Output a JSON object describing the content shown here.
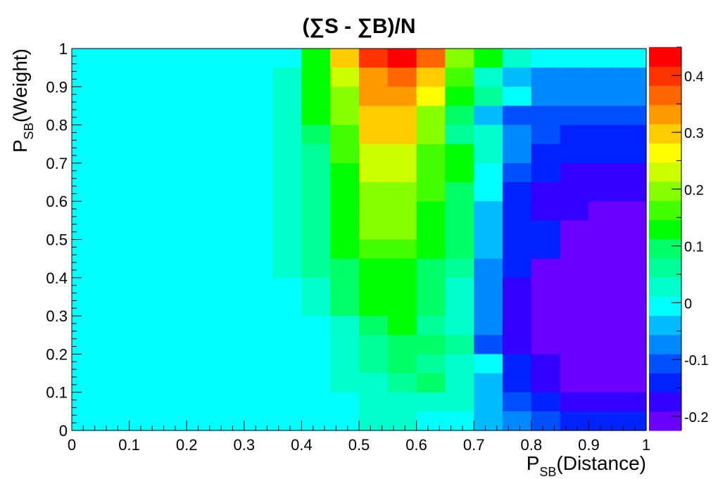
{
  "chart_data": {
    "type": "heatmap",
    "title": "(∑S - ∑B)/N",
    "xlabel": {
      "main": "P",
      "sub": "SB",
      "rest": "(Distance)"
    },
    "ylabel": {
      "main": "P",
      "sub": "SB",
      "rest": "(Weight)"
    },
    "xlim": [
      0,
      1
    ],
    "ylim": [
      0,
      1
    ],
    "x_ticks": [
      "0",
      "0.1",
      "0.2",
      "0.3",
      "0.4",
      "0.5",
      "0.6",
      "0.7",
      "0.8",
      "0.9",
      "1"
    ],
    "y_ticks": [
      "0",
      "0.1",
      "0.2",
      "0.3",
      "0.4",
      "0.5",
      "0.6",
      "0.7",
      "0.8",
      "0.9",
      "1"
    ],
    "x_bin_edges": [
      0,
      0.05,
      0.1,
      0.15,
      0.2,
      0.25,
      0.3,
      0.35,
      0.4,
      0.45,
      0.5,
      0.55,
      0.6,
      0.65,
      0.7,
      0.75,
      0.8,
      0.85,
      0.9,
      0.95,
      1.0
    ],
    "y_bin_edges": [
      0,
      0.05,
      0.1,
      0.15,
      0.2,
      0.25,
      0.3,
      0.35,
      0.4,
      0.45,
      0.5,
      0.55,
      0.6,
      0.65,
      0.7,
      0.75,
      0.8,
      0.85,
      0.9,
      0.95,
      1.0
    ],
    "z_values_rows_from_y1_to_y0": [
      [
        -0.01,
        -0.01,
        -0.01,
        -0.01,
        -0.01,
        -0.01,
        0.01,
        0.01,
        0.14,
        0.29,
        0.41,
        0.44,
        0.37,
        0.19,
        0.12,
        0.03,
        -0.01,
        -0.01,
        -0.01,
        -0.01
      ],
      [
        -0.01,
        -0.01,
        -0.01,
        -0.01,
        -0.01,
        -0.01,
        -0.01,
        0.04,
        0.12,
        0.24,
        0.34,
        0.37,
        0.29,
        0.15,
        0.03,
        -0.03,
        -0.07,
        -0.07,
        -0.07,
        -0.07
      ],
      [
        -0.01,
        -0.01,
        -0.01,
        -0.01,
        -0.01,
        -0.01,
        -0.01,
        0.04,
        0.12,
        0.21,
        0.33,
        0.33,
        0.27,
        0.14,
        0.07,
        -0.01,
        -0.07,
        -0.07,
        -0.07,
        -0.07
      ],
      [
        -0.01,
        -0.01,
        -0.01,
        -0.01,
        -0.01,
        -0.01,
        -0.01,
        0.04,
        0.12,
        0.21,
        0.31,
        0.31,
        0.19,
        0.09,
        -0.03,
        -0.11,
        -0.11,
        -0.11,
        -0.11,
        -0.11
      ],
      [
        -0.01,
        -0.01,
        -0.01,
        -0.01,
        -0.01,
        -0.01,
        -0.01,
        0.04,
        0.09,
        0.16,
        0.29,
        0.29,
        0.21,
        0.06,
        0.03,
        -0.07,
        -0.11,
        -0.15,
        -0.15,
        -0.15
      ],
      [
        -0.01,
        -0.01,
        -0.01,
        -0.01,
        -0.01,
        -0.01,
        -0.01,
        0.04,
        0.06,
        0.16,
        0.24,
        0.24,
        0.16,
        0.12,
        0.03,
        -0.07,
        -0.15,
        -0.15,
        -0.15,
        -0.15
      ],
      [
        -0.01,
        -0.01,
        -0.01,
        -0.01,
        -0.01,
        -0.01,
        -0.01,
        0.04,
        0.06,
        0.13,
        0.24,
        0.24,
        0.16,
        0.13,
        -0.01,
        -0.11,
        -0.15,
        -0.19,
        -0.19,
        -0.19
      ],
      [
        -0.01,
        -0.01,
        -0.01,
        -0.01,
        -0.01,
        -0.01,
        -0.01,
        0.04,
        0.06,
        0.13,
        0.21,
        0.21,
        0.16,
        0.09,
        -0.01,
        -0.15,
        -0.19,
        -0.19,
        -0.19,
        -0.19
      ],
      [
        -0.01,
        -0.01,
        -0.01,
        -0.01,
        -0.01,
        -0.01,
        -0.01,
        0.04,
        0.06,
        0.12,
        0.21,
        0.21,
        0.13,
        0.09,
        -0.03,
        -0.15,
        -0.19,
        -0.19,
        -0.21,
        -0.21
      ],
      [
        -0.01,
        -0.01,
        -0.01,
        -0.01,
        -0.01,
        -0.01,
        -0.01,
        0.04,
        0.06,
        0.12,
        0.21,
        0.21,
        0.13,
        0.09,
        -0.03,
        -0.15,
        -0.15,
        -0.21,
        -0.21,
        -0.21
      ],
      [
        -0.01,
        -0.01,
        -0.01,
        -0.01,
        -0.01,
        -0.01,
        -0.01,
        0.04,
        0.06,
        0.12,
        0.16,
        0.16,
        0.12,
        0.09,
        -0.03,
        -0.15,
        -0.15,
        -0.21,
        -0.21,
        -0.21
      ],
      [
        -0.01,
        -0.01,
        -0.01,
        -0.01,
        -0.01,
        -0.01,
        -0.01,
        0.04,
        0.06,
        0.09,
        0.13,
        0.13,
        0.09,
        0.06,
        -0.07,
        -0.15,
        -0.21,
        -0.21,
        -0.21,
        -0.21
      ],
      [
        -0.01,
        -0.01,
        -0.01,
        -0.01,
        -0.01,
        -0.01,
        -0.01,
        0.01,
        0.03,
        0.09,
        0.12,
        0.12,
        0.09,
        0.03,
        -0.07,
        -0.18,
        -0.21,
        -0.21,
        -0.21,
        -0.21
      ],
      [
        -0.01,
        -0.01,
        -0.01,
        -0.01,
        -0.01,
        -0.01,
        -0.01,
        0.01,
        0.03,
        0.09,
        0.12,
        0.12,
        0.09,
        0.03,
        -0.07,
        -0.19,
        -0.21,
        -0.21,
        -0.21,
        -0.21
      ],
      [
        -0.01,
        -0.01,
        -0.01,
        -0.01,
        -0.01,
        -0.01,
        -0.01,
        -0.01,
        -0.01,
        0.03,
        0.09,
        0.14,
        0.06,
        0.03,
        -0.07,
        -0.19,
        -0.21,
        -0.21,
        -0.21,
        -0.21
      ],
      [
        -0.01,
        -0.01,
        -0.01,
        -0.01,
        -0.01,
        -0.01,
        -0.01,
        -0.01,
        -0.01,
        0.03,
        0.06,
        0.09,
        0.09,
        0.06,
        -0.11,
        -0.19,
        -0.21,
        -0.21,
        -0.21,
        -0.21
      ],
      [
        -0.01,
        -0.01,
        -0.01,
        -0.01,
        -0.01,
        -0.01,
        -0.01,
        -0.01,
        -0.01,
        0.03,
        0.06,
        0.09,
        0.06,
        0.03,
        -0.01,
        -0.15,
        -0.19,
        -0.21,
        -0.21,
        -0.21
      ],
      [
        -0.01,
        -0.01,
        -0.01,
        -0.01,
        -0.01,
        -0.01,
        -0.01,
        -0.01,
        -0.01,
        0.03,
        0.03,
        0.06,
        0.09,
        0.03,
        -0.03,
        -0.15,
        -0.19,
        -0.21,
        -0.21,
        -0.21
      ],
      [
        -0.01,
        -0.01,
        -0.01,
        -0.01,
        -0.01,
        -0.01,
        -0.01,
        -0.01,
        -0.01,
        -0.01,
        0.03,
        0.03,
        0.03,
        0.03,
        -0.03,
        -0.11,
        -0.15,
        -0.19,
        -0.19,
        -0.19
      ],
      [
        -0.01,
        -0.01,
        -0.01,
        -0.01,
        -0.01,
        -0.01,
        -0.01,
        -0.01,
        -0.01,
        -0.01,
        0.03,
        0.03,
        0.01,
        -0.01,
        -0.03,
        -0.07,
        -0.11,
        -0.15,
        -0.15,
        -0.15
      ]
    ],
    "colorbar": {
      "zmin": -0.225,
      "zmax": 0.45,
      "tick_values": [
        0.4,
        0.3,
        0.2,
        0.1,
        0,
        -0.1,
        -0.2
      ],
      "tick_labels": [
        "0.4",
        "0.3",
        "0.2",
        "0.1",
        "0",
        "-0.1",
        "-0.2"
      ],
      "colors_bottom_to_top": [
        "#6a00ff",
        "#3300ff",
        "#0022ff",
        "#0050ff",
        "#0088ff",
        "#00bbff",
        "#00ffff",
        "#00ffcc",
        "#00ff99",
        "#00ff66",
        "#00ff00",
        "#44ff00",
        "#88ff00",
        "#ccff00",
        "#ffff00",
        "#ffcc00",
        "#ff9900",
        "#ff6600",
        "#ff3300",
        "#ff0000"
      ]
    }
  }
}
